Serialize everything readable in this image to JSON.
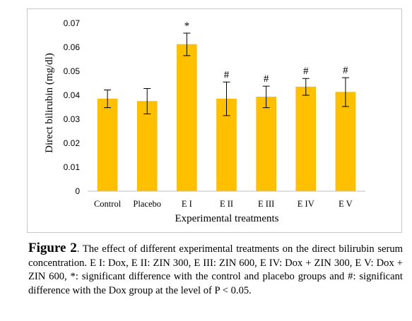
{
  "chart_data": {
    "type": "bar",
    "title": "",
    "xlabel": "Experimental treatments",
    "ylabel": "Direct bilirubin (mg/dl)",
    "ylim": [
      0,
      0.07
    ],
    "yticks": [
      "0",
      "0.01",
      "0.02",
      "0.03",
      "0.04",
      "0.05",
      "0.06",
      "0.07"
    ],
    "ytick_values": [
      0,
      0.01,
      0.02,
      0.03,
      0.04,
      0.05,
      0.06,
      0.07
    ],
    "categories": [
      "Control",
      "Placebo",
      "E I",
      "E II",
      "E III",
      "E IV",
      "E V"
    ],
    "values": [
      0.0385,
      0.0375,
      0.0612,
      0.0385,
      0.0393,
      0.0435,
      0.0413
    ],
    "error": [
      0.0037,
      0.0053,
      0.0047,
      0.007,
      0.0045,
      0.0035,
      0.006
    ],
    "annotations": [
      "",
      "",
      "*",
      "#",
      "#",
      "#",
      "#"
    ],
    "grid": false,
    "bar_color": "#FFC000",
    "error_bar_color": "#000000"
  },
  "caption": {
    "label": "Figure 2",
    "text": ". The effect of different experimental treatments on the direct bilirubin serum concentration. E I: Dox, E II: ZIN 300, E III: ZIN 600, E IV: Dox + ZIN 300, E V: Dox + ZIN 600, *: significant difference with the control and placebo groups and #: significant difference with the Dox group at the level of P < 0.05."
  }
}
